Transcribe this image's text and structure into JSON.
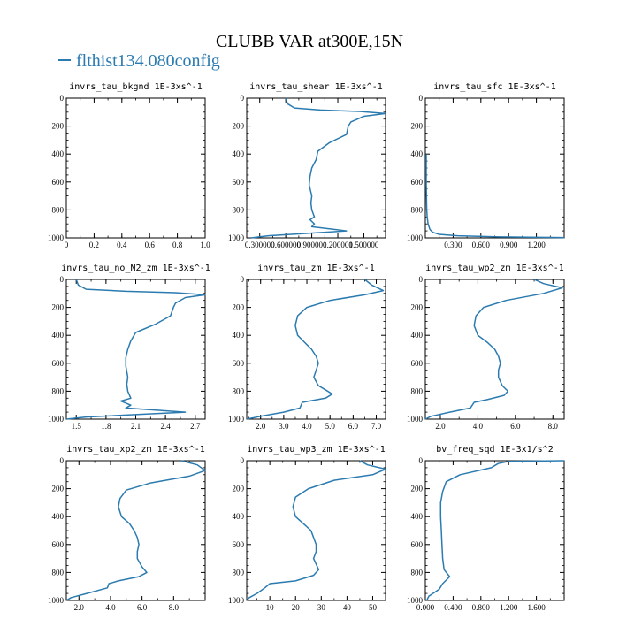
{
  "figure": {
    "title": "CLUBB VAR at300E,15N",
    "legend": "flthist134.080config",
    "line_color": "#2b7bb0"
  },
  "chart_data": [
    {
      "type": "line",
      "title": "invrs_tau_bkgnd",
      "unit": "1E-3xs^-1",
      "xlim": [
        0,
        1
      ],
      "ylim": [
        1000,
        0
      ],
      "xticks": [
        {
          "v": 0,
          "label": "0"
        },
        {
          "v": 0.2,
          "label": "0.2"
        },
        {
          "v": 0.4,
          "label": "0.4"
        },
        {
          "v": 0.6,
          "label": "0.6"
        },
        {
          "v": 0.8,
          "label": "0.8"
        },
        {
          "v": 1.0,
          "label": "1.0"
        }
      ],
      "yticks": [
        0,
        200,
        400,
        600,
        800,
        1000
      ],
      "x": [],
      "y": []
    },
    {
      "type": "line",
      "title": "invrs_tau_shear",
      "unit": "1E-3xs^-1",
      "xlim": [
        0.15,
        1.75
      ],
      "ylim": [
        1000,
        0
      ],
      "xticks": [
        {
          "v": 0.3,
          "label": "0.300000"
        },
        {
          "v": 0.6,
          "label": "0.600000"
        },
        {
          "v": 0.9,
          "label": "0.900000"
        },
        {
          "v": 1.2,
          "label": "1.200000"
        },
        {
          "v": 1.5,
          "label": "1.500000"
        }
      ],
      "yticks": [
        0,
        200,
        400,
        600,
        800,
        1000
      ],
      "x": [
        0.6,
        0.62,
        0.7,
        1.0,
        1.45,
        1.75,
        1.5,
        1.35,
        1.32,
        1.3,
        1.1,
        0.97,
        0.95,
        0.9,
        0.88,
        0.87,
        0.9,
        0.89,
        0.9,
        0.93,
        0.88,
        0.93,
        0.9,
        1.3,
        0.4,
        0.2
      ],
      "y": [
        0,
        40,
        70,
        85,
        95,
        110,
        130,
        170,
        200,
        260,
        320,
        380,
        440,
        500,
        560,
        620,
        700,
        750,
        800,
        850,
        870,
        900,
        920,
        950,
        985,
        1000
      ]
    },
    {
      "type": "line",
      "title": "invrs_tau_sfc",
      "unit": "1E-3xs^-1",
      "xlim": [
        0,
        1.5
      ],
      "ylim": [
        1000,
        0
      ],
      "xticks": [
        {
          "v": 0.3,
          "label": "0.300"
        },
        {
          "v": 0.6,
          "label": "0.600"
        },
        {
          "v": 0.9,
          "label": "0.900"
        },
        {
          "v": 1.2,
          "label": "1.200"
        }
      ],
      "yticks": [
        0,
        200,
        400,
        600,
        800,
        1000
      ],
      "x": [
        0.01,
        0.01,
        0.012,
        0.015,
        0.02,
        0.03,
        0.05,
        0.08,
        0.15,
        0.35,
        0.8,
        1.5
      ],
      "y": [
        400,
        600,
        700,
        800,
        850,
        900,
        940,
        960,
        975,
        985,
        993,
        998
      ]
    },
    {
      "type": "line",
      "title": "invrs_tau_no_N2_zm",
      "unit": "1E-3xs^-1",
      "xlim": [
        1.4,
        2.8
      ],
      "ylim": [
        1000,
        0
      ],
      "xticks": [
        {
          "v": 1.5,
          "label": "1.5"
        },
        {
          "v": 1.8,
          "label": "1.8"
        },
        {
          "v": 2.1,
          "label": "2.1"
        },
        {
          "v": 2.4,
          "label": "2.4"
        },
        {
          "v": 2.7,
          "label": "2.7"
        }
      ],
      "yticks": [
        0,
        200,
        400,
        600,
        800,
        1000
      ],
      "x": [
        1.5,
        1.52,
        1.6,
        2.0,
        2.5,
        2.8,
        2.6,
        2.5,
        2.48,
        2.45,
        2.3,
        2.1,
        2.05,
        2.02,
        2.0,
        2.0,
        2.02,
        2.01,
        2.02,
        2.05,
        1.95,
        2.05,
        2.0,
        2.6,
        1.6,
        1.4
      ],
      "y": [
        0,
        40,
        70,
        85,
        95,
        110,
        130,
        170,
        200,
        260,
        320,
        380,
        440,
        500,
        560,
        620,
        700,
        750,
        800,
        850,
        870,
        900,
        920,
        950,
        985,
        1000
      ]
    },
    {
      "type": "line",
      "title": "invrs_tau_zm",
      "unit": "1E-3xs^-1",
      "xlim": [
        1.4,
        7.4
      ],
      "ylim": [
        1000,
        0
      ],
      "xticks": [
        {
          "v": 2,
          "label": "2.0"
        },
        {
          "v": 3,
          "label": "3.0"
        },
        {
          "v": 4,
          "label": "4.0"
        },
        {
          "v": 5,
          "label": "5.0"
        },
        {
          "v": 6,
          "label": "6.0"
        },
        {
          "v": 7,
          "label": "7.0"
        }
      ],
      "yticks": [
        0,
        200,
        400,
        600,
        800,
        1000
      ],
      "x": [
        6.5,
        6.8,
        7.3,
        6.5,
        5.0,
        4.0,
        3.6,
        3.5,
        3.6,
        3.9,
        4.2,
        4.4,
        4.5,
        4.4,
        4.3,
        4.5,
        4.8,
        5.1,
        4.8,
        3.8,
        3.7,
        3.0,
        2.0,
        1.4
      ],
      "y": [
        0,
        40,
        80,
        110,
        150,
        200,
        260,
        330,
        400,
        450,
        500,
        550,
        600,
        650,
        700,
        760,
        790,
        820,
        850,
        880,
        920,
        950,
        980,
        1000
      ]
    },
    {
      "type": "line",
      "title": "invrs_tau_wp2_zm",
      "unit": "1E-3xs^-1",
      "xlim": [
        1.2,
        8.6
      ],
      "ylim": [
        1000,
        0
      ],
      "xticks": [
        {
          "v": 2,
          "label": "2.0"
        },
        {
          "v": 4,
          "label": "4.0"
        },
        {
          "v": 6,
          "label": "6.0"
        },
        {
          "v": 8,
          "label": "8.0"
        }
      ],
      "yticks": [
        0,
        200,
        400,
        600,
        800,
        1000
      ],
      "x": [
        7.0,
        7.5,
        8.5,
        7.5,
        5.5,
        4.3,
        3.9,
        3.8,
        4.0,
        4.5,
        4.9,
        5.1,
        5.2,
        5.1,
        5.1,
        5.3,
        5.6,
        5.4,
        4.5,
        3.8,
        3.6,
        2.5,
        1.5,
        1.2
      ],
      "y": [
        0,
        30,
        60,
        100,
        150,
        200,
        260,
        330,
        400,
        450,
        500,
        550,
        600,
        650,
        700,
        760,
        800,
        830,
        860,
        880,
        920,
        950,
        980,
        1000
      ]
    },
    {
      "type": "line",
      "title": "invrs_tau_xp2_zm",
      "unit": "1E-3xs^-1",
      "xlim": [
        1.2,
        10.0
      ],
      "ylim": [
        1000,
        0
      ],
      "xticks": [
        {
          "v": 2,
          "label": "2.0"
        },
        {
          "v": 4,
          "label": "4.0"
        },
        {
          "v": 6,
          "label": "6.0"
        },
        {
          "v": 8,
          "label": "8.0"
        }
      ],
      "yticks": [
        0,
        200,
        400,
        600,
        800,
        1000
      ],
      "x": [
        8.5,
        9.5,
        10.0,
        9.0,
        6.5,
        5.0,
        4.6,
        4.5,
        4.7,
        5.2,
        5.5,
        5.7,
        5.8,
        5.7,
        5.7,
        6.0,
        6.3,
        5.8,
        4.5,
        3.9,
        3.8,
        2.5,
        1.5,
        1.2
      ],
      "y": [
        0,
        30,
        70,
        110,
        160,
        210,
        270,
        330,
        400,
        450,
        500,
        550,
        600,
        650,
        700,
        760,
        800,
        830,
        860,
        880,
        910,
        950,
        980,
        1000
      ]
    },
    {
      "type": "line",
      "title": "invrs_tau_wp3_zm",
      "unit": "1E-3xs^-1",
      "xlim": [
        1,
        55
      ],
      "ylim": [
        1000,
        0
      ],
      "xticks": [
        {
          "v": 10,
          "label": "10"
        },
        {
          "v": 20,
          "label": "20"
        },
        {
          "v": 30,
          "label": "30"
        },
        {
          "v": 40,
          "label": "40"
        },
        {
          "v": 50,
          "label": "50"
        }
      ],
      "yticks": [
        0,
        200,
        400,
        600,
        800,
        1000
      ],
      "x": [
        45,
        48,
        55,
        50,
        35,
        25,
        20,
        19,
        20,
        23,
        26,
        27,
        28,
        28,
        27,
        28,
        29,
        27,
        20,
        10,
        8,
        5,
        2,
        1
      ],
      "y": [
        0,
        30,
        60,
        100,
        140,
        200,
        260,
        330,
        400,
        450,
        500,
        550,
        600,
        650,
        700,
        740,
        780,
        820,
        860,
        880,
        910,
        950,
        980,
        1000
      ]
    },
    {
      "type": "line",
      "title": "bv_freq_sqd",
      "unit": "1E-3x1/s^2",
      "xlim": [
        0,
        2.0
      ],
      "ylim": [
        1000,
        0
      ],
      "xticks": [
        {
          "v": 0,
          "label": "0.000"
        },
        {
          "v": 0.4,
          "label": "0.400"
        },
        {
          "v": 0.8,
          "label": "0.800"
        },
        {
          "v": 1.2,
          "label": "1.200"
        },
        {
          "v": 1.6,
          "label": "1.600"
        }
      ],
      "yticks": [
        0,
        200,
        400,
        600,
        800,
        1000
      ],
      "x": [
        2.0,
        1.2,
        1.05,
        0.95,
        0.5,
        0.3,
        0.25,
        0.22,
        0.22,
        0.23,
        0.24,
        0.25,
        0.27,
        0.35,
        0.25,
        0.2,
        0.05,
        0.02
      ],
      "y": [
        0,
        5,
        20,
        50,
        100,
        150,
        220,
        300,
        400,
        500,
        600,
        700,
        780,
        830,
        880,
        920,
        970,
        1000
      ]
    }
  ]
}
